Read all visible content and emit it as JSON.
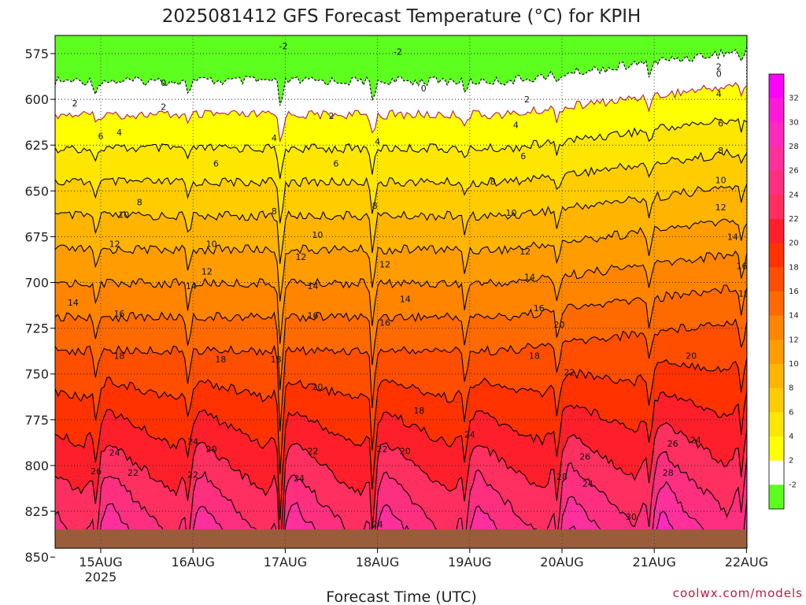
{
  "title": "2025081412 GFS Forecast Temperature (°C) for KPIH",
  "credit": "coolwx.com/models",
  "chart_data": {
    "type": "heatmap",
    "title": "2025081412 GFS Forecast Temperature (°C) for KPIH",
    "xlabel": "Forecast Time (UTC)",
    "ylabel": "",
    "x_ticks": [
      {
        "label": "15AUG",
        "sub": "2025",
        "day": 1
      },
      {
        "label": "16AUG",
        "sub": "",
        "day": 2
      },
      {
        "label": "17AUG",
        "sub": "",
        "day": 3
      },
      {
        "label": "18AUG",
        "sub": "",
        "day": 4
      },
      {
        "label": "19AUG",
        "sub": "",
        "day": 5
      },
      {
        "label": "20AUG",
        "sub": "",
        "day": 6
      },
      {
        "label": "21AUG",
        "sub": "",
        "day": 7
      },
      {
        "label": "22AUG",
        "sub": "",
        "day": 8
      }
    ],
    "xlim_days": [
      0.5,
      8
    ],
    "y_ticks": [
      575,
      600,
      625,
      650,
      675,
      700,
      725,
      750,
      775,
      800,
      825,
      850
    ],
    "ylim_hpa": [
      564,
      865
    ],
    "y_axis": "pressure, increasing downward",
    "grid": "dotted",
    "colorbar": {
      "labels": [
        "32",
        "30",
        "28",
        "26",
        "24",
        "22",
        "20",
        "18",
        "16",
        "14",
        "12",
        "10",
        "8",
        "6",
        "4",
        "2",
        "-2"
      ],
      "colors": [
        "#ff00ff",
        "#ff1ad9",
        "#ff29bf",
        "#ff2f9c",
        "#ff2f80",
        "#ff2f5f",
        "#ff1f2a",
        "#ff3200",
        "#ff4e00",
        "#ff6a00",
        "#ff8400",
        "#ff9c00",
        "#ffb400",
        "#ffcc00",
        "#ffe600",
        "#ffff00",
        "#ffffff",
        "#5dff1f"
      ]
    },
    "levels": [
      -2,
      0,
      2,
      4,
      6,
      8,
      10,
      12,
      14,
      16,
      18,
      20,
      22,
      24,
      26,
      28,
      30,
      32
    ],
    "contour_labels": [
      {
        "v": "-2",
        "day": 2.98,
        "p": 571
      },
      {
        "v": "-2",
        "day": 4.22,
        "p": 574
      },
      {
        "v": "0",
        "day": 1.68,
        "p": 591
      },
      {
        "v": "0",
        "day": 4.5,
        "p": 594
      },
      {
        "v": "0",
        "day": 7.7,
        "p": 586
      },
      {
        "v": "2",
        "day": 0.72,
        "p": 602
      },
      {
        "v": "2",
        "day": 1.68,
        "p": 604
      },
      {
        "v": "2",
        "day": 3.5,
        "p": 609
      },
      {
        "v": "2",
        "day": 5.62,
        "p": 600
      },
      {
        "v": "2",
        "day": 7.7,
        "p": 582
      },
      {
        "v": "4",
        "day": 1.2,
        "p": 618
      },
      {
        "v": "4",
        "day": 2.88,
        "p": 621
      },
      {
        "v": "4",
        "day": 4.0,
        "p": 623
      },
      {
        "v": "4",
        "day": 5.5,
        "p": 614
      },
      {
        "v": "4",
        "day": 7.7,
        "p": 597
      },
      {
        "v": "6",
        "day": 1.0,
        "p": 620
      },
      {
        "v": "6",
        "day": 2.25,
        "p": 635
      },
      {
        "v": "6",
        "day": 3.55,
        "p": 635
      },
      {
        "v": "6",
        "day": 5.58,
        "p": 631
      },
      {
        "v": "6",
        "day": 7.72,
        "p": 613
      },
      {
        "v": "8",
        "day": 1.42,
        "p": 656
      },
      {
        "v": "8",
        "day": 2.88,
        "p": 661
      },
      {
        "v": "8",
        "day": 3.97,
        "p": 658
      },
      {
        "v": "8",
        "day": 5.25,
        "p": 645
      },
      {
        "v": "8",
        "day": 7.72,
        "p": 628
      },
      {
        "v": "10",
        "day": 1.25,
        "p": 663
      },
      {
        "v": "10",
        "day": 2.2,
        "p": 679
      },
      {
        "v": "10",
        "day": 3.35,
        "p": 674
      },
      {
        "v": "10",
        "day": 5.45,
        "p": 662
      },
      {
        "v": "10",
        "day": 7.72,
        "p": 644
      },
      {
        "v": "12",
        "day": 1.15,
        "p": 679
      },
      {
        "v": "12",
        "day": 2.15,
        "p": 694
      },
      {
        "v": "12",
        "day": 3.17,
        "p": 686
      },
      {
        "v": "12",
        "day": 4.08,
        "p": 690
      },
      {
        "v": "12",
        "day": 5.6,
        "p": 683
      },
      {
        "v": "12",
        "day": 7.72,
        "p": 659
      },
      {
        "v": "14",
        "day": 0.7,
        "p": 711
      },
      {
        "v": "14",
        "day": 1.98,
        "p": 702
      },
      {
        "v": "14",
        "day": 3.3,
        "p": 702
      },
      {
        "v": "14",
        "day": 4.3,
        "p": 709
      },
      {
        "v": "14",
        "day": 5.65,
        "p": 697
      },
      {
        "v": "14",
        "day": 7.85,
        "p": 675
      },
      {
        "v": "16",
        "day": 1.2,
        "p": 717
      },
      {
        "v": "16",
        "day": 3.3,
        "p": 718
      },
      {
        "v": "16",
        "day": 4.08,
        "p": 722
      },
      {
        "v": "16",
        "day": 5.75,
        "p": 714
      },
      {
        "v": "16",
        "day": 7.95,
        "p": 691
      },
      {
        "v": "18",
        "day": 1.2,
        "p": 740
      },
      {
        "v": "18",
        "day": 2.3,
        "p": 742
      },
      {
        "v": "18",
        "day": 2.9,
        "p": 742
      },
      {
        "v": "18",
        "day": 4.45,
        "p": 770
      },
      {
        "v": "18",
        "day": 5.7,
        "p": 740
      },
      {
        "v": "18",
        "day": 7.97,
        "p": 706
      },
      {
        "v": "20",
        "day": 2.2,
        "p": 791
      },
      {
        "v": "20",
        "day": 3.35,
        "p": 757
      },
      {
        "v": "20",
        "day": 4.3,
        "p": 792
      },
      {
        "v": "20",
        "day": 5.97,
        "p": 723
      },
      {
        "v": "20",
        "day": 7.4,
        "p": 740
      },
      {
        "v": "22",
        "day": 1.35,
        "p": 804
      },
      {
        "v": "22",
        "day": 2.0,
        "p": 805
      },
      {
        "v": "22",
        "day": 3.3,
        "p": 792
      },
      {
        "v": "22",
        "day": 4.05,
        "p": 791
      },
      {
        "v": "22",
        "day": 6.08,
        "p": 749
      },
      {
        "v": "22",
        "day": 8.1,
        "p": 753
      },
      {
        "v": "24",
        "day": 1.15,
        "p": 793
      },
      {
        "v": "24",
        "day": 2.0,
        "p": 787
      },
      {
        "v": "24",
        "day": 3.15,
        "p": 807
      },
      {
        "v": "24",
        "day": 4.0,
        "p": 832
      },
      {
        "v": "24",
        "day": 5.0,
        "p": 783
      },
      {
        "v": "24",
        "day": 6.28,
        "p": 810
      },
      {
        "v": "24",
        "day": 7.45,
        "p": 786
      },
      {
        "v": "24",
        "day": 7.5,
        "p": 862
      },
      {
        "v": "26",
        "day": 0.95,
        "p": 803
      },
      {
        "v": "26",
        "day": 6.25,
        "p": 795
      },
      {
        "v": "26",
        "day": 7.2,
        "p": 788
      },
      {
        "v": "28",
        "day": 6.0,
        "p": 806
      },
      {
        "v": "28",
        "day": 7.15,
        "p": 804
      },
      {
        "v": "30",
        "day": 6.75,
        "p": 828
      },
      {
        "v": "30",
        "day": 5.7,
        "p": 861
      }
    ]
  }
}
